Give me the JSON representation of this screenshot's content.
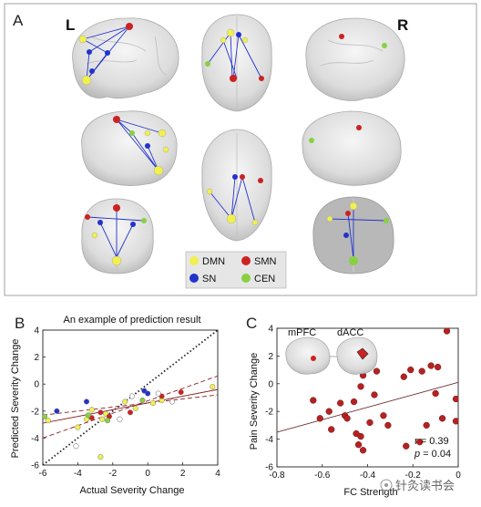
{
  "panel_a": {
    "letter": "A",
    "left_label": "L",
    "right_label": "R",
    "legend": [
      {
        "label": "DMN",
        "color": "#f0f050"
      },
      {
        "label": "SMN",
        "color": "#cc2222"
      },
      {
        "label": "SN",
        "color": "#2233cc"
      },
      {
        "label": "CEN",
        "color": "#88d040"
      }
    ]
  },
  "panel_b": {
    "letter": "B"
  },
  "panel_c": {
    "letter": "C",
    "inset_labels": [
      "mPFC",
      "dACC"
    ],
    "stat_r": "r = 0.39",
    "stat_p_symbol": "p",
    "stat_p_value": " = 0.04"
  },
  "watermark": "针灸读书会",
  "chart_data": [
    {
      "type": "scatter",
      "title": "An example of prediction result",
      "xlabel": "Actual Severity Change",
      "ylabel": "Predicted Severity Change",
      "xlim": [
        -6,
        4
      ],
      "ylim": [
        -6,
        4
      ],
      "xticks": [
        "-6",
        "-4",
        "-2",
        "0",
        "2",
        "4"
      ],
      "yticks": [
        "4",
        "2",
        "0",
        "-2",
        "-4",
        "-6"
      ],
      "groups": [
        {
          "color": "#f0f050",
          "points": [
            [
              -5.7,
              -2.7
            ],
            [
              -4.0,
              -3.2
            ],
            [
              -3.5,
              -2.6
            ],
            [
              -3.2,
              -1.9
            ],
            [
              -2.6,
              -2.6
            ],
            [
              -2.7,
              -5.4
            ],
            [
              -2.4,
              -2.2
            ],
            [
              -1.3,
              -1.3
            ],
            [
              -0.7,
              -1.8
            ],
            [
              0.3,
              -1.4
            ],
            [
              0.8,
              -1.2
            ],
            [
              3.7,
              -0.2
            ]
          ]
        },
        {
          "color": "#2233cc",
          "points": [
            [
              -5.2,
              -2.0
            ],
            [
              -3.5,
              -1.3
            ],
            [
              -0.2,
              -0.5
            ],
            [
              0.0,
              -0.7
            ]
          ]
        },
        {
          "color": "#cc2222",
          "points": [
            [
              -3.2,
              -2.5
            ],
            [
              -2.7,
              -2.1
            ],
            [
              -2.2,
              -2.4
            ],
            [
              -1.0,
              -2.1
            ],
            [
              0.8,
              -0.9
            ],
            [
              1.9,
              -0.6
            ]
          ]
        },
        {
          "color": "#88d040",
          "points": [
            [
              -5.9,
              -2.4
            ],
            [
              -3.4,
              -2.3
            ],
            [
              -2.3,
              -2.7
            ],
            [
              -0.3,
              -1.2
            ]
          ]
        },
        {
          "color": "#ffffff",
          "points": [
            [
              -4.1,
              -4.6
            ],
            [
              -1.6,
              -2.6
            ],
            [
              -0.9,
              -0.9
            ],
            [
              0.6,
              -0.7
            ],
            [
              1.4,
              -1.3
            ]
          ]
        }
      ],
      "lines": [
        {
          "color": "#222222",
          "style": "dotted",
          "endpoints": [
            [
              -6,
              -6
            ],
            [
              4,
              4
            ]
          ]
        },
        {
          "color": "#8a1f1f",
          "style": "solid",
          "endpoints": [
            [
              -6,
              -2.9
            ],
            [
              4,
              -0.4
            ]
          ]
        },
        {
          "color": "#8a1f1f",
          "style": "dashed",
          "endpoints": [
            [
              -6,
              -2.3
            ],
            [
              4,
              -0.8
            ]
          ]
        },
        {
          "color": "#8a1f1f",
          "style": "dashed",
          "endpoints": [
            [
              -6,
              -4.0
            ],
            [
              4,
              0.6
            ]
          ]
        }
      ]
    },
    {
      "type": "scatter",
      "xlabel": "FC Strength",
      "ylabel": "Pain Severity Change",
      "xlim": [
        -0.8,
        0.0
      ],
      "ylim": [
        -6,
        4
      ],
      "xticks": [
        "-0.8",
        "-0.6",
        "-0.4",
        "-0.2",
        "0"
      ],
      "yticks": [
        "4",
        "2",
        "0",
        "-2",
        "-4",
        "-6"
      ],
      "points": [
        [
          -0.05,
          3.8
        ],
        [
          -0.09,
          1.2
        ],
        [
          -0.12,
          1.3
        ],
        [
          -0.16,
          0.9
        ],
        [
          -0.21,
          1.0
        ],
        [
          -0.24,
          0.5
        ],
        [
          -0.36,
          0.9
        ],
        [
          -0.42,
          0.6
        ],
        [
          -0.43,
          -0.2
        ],
        [
          -0.37,
          -0.8
        ],
        [
          -0.64,
          -1.2
        ],
        [
          -0.57,
          -2.0
        ],
        [
          -0.52,
          -1.4
        ],
        [
          -0.5,
          -2.3
        ],
        [
          -0.46,
          -1.3
        ],
        [
          -0.61,
          -2.5
        ],
        [
          -0.56,
          -3.3
        ],
        [
          -0.49,
          -2.5
        ],
        [
          -0.45,
          -3.6
        ],
        [
          -0.43,
          -3.8
        ],
        [
          -0.44,
          -4.4
        ],
        [
          -0.42,
          -4.8
        ],
        [
          -0.39,
          -2.8
        ],
        [
          -0.33,
          -2.3
        ],
        [
          -0.31,
          -3.0
        ],
        [
          -0.23,
          -4.5
        ],
        [
          -0.17,
          -4.2
        ],
        [
          -0.14,
          -3.0
        ],
        [
          -0.1,
          -0.7
        ],
        [
          -0.07,
          -2.5
        ],
        [
          -0.01,
          -1.1
        ],
        [
          -0.01,
          -2.7
        ]
      ],
      "fit_line": [
        [
          -0.8,
          -3.5
        ],
        [
          0.0,
          0.1
        ]
      ]
    }
  ]
}
